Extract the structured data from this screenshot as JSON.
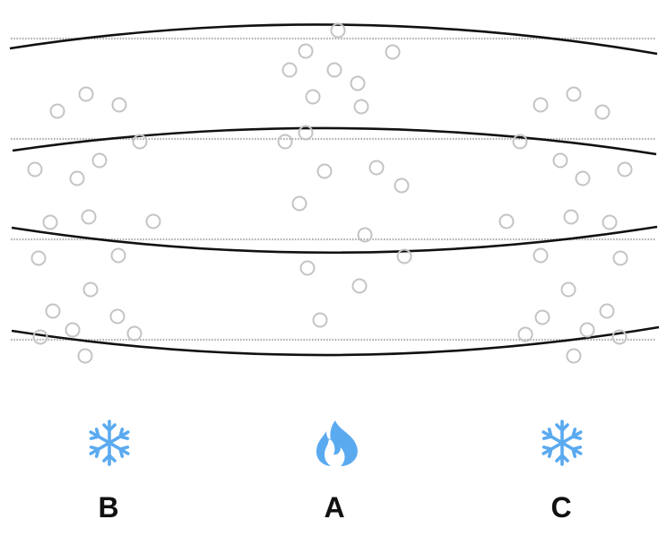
{
  "labels": {
    "b": "B",
    "a": "A",
    "c": "C"
  },
  "icons": {
    "b": "snowflake-icon",
    "a": "flame-icon",
    "c": "snowflake-icon"
  },
  "colors": {
    "icon": "#5aaaf0",
    "particle": "#c4c4c4",
    "boundary": "#111111",
    "reference_line": "#b0b0b0"
  }
}
